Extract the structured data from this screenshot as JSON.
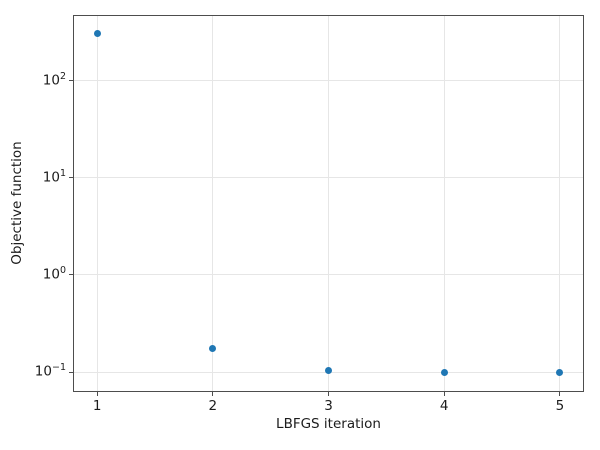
{
  "chart_data": {
    "type": "scatter",
    "xlabel": "LBFGS iteration",
    "ylabel": "Objective function",
    "x": [
      1,
      2,
      3,
      4,
      5
    ],
    "y": [
      310,
      0.175,
      0.103,
      0.099,
      0.098
    ],
    "yscale": "log",
    "xlim": [
      0.8,
      5.2
    ],
    "ylim_log10": [
      -1.195,
      2.668
    ],
    "x_ticks": [
      1,
      2,
      3,
      4,
      5
    ],
    "y_tick_exponents": [
      2,
      1,
      0,
      -1
    ],
    "grid": true,
    "legend_position": "none",
    "marker_color": "#1f77b4",
    "grid_color": "#e6e6e6",
    "axis_color": "#4d4d4d",
    "text_color": "#1c1c1c"
  }
}
